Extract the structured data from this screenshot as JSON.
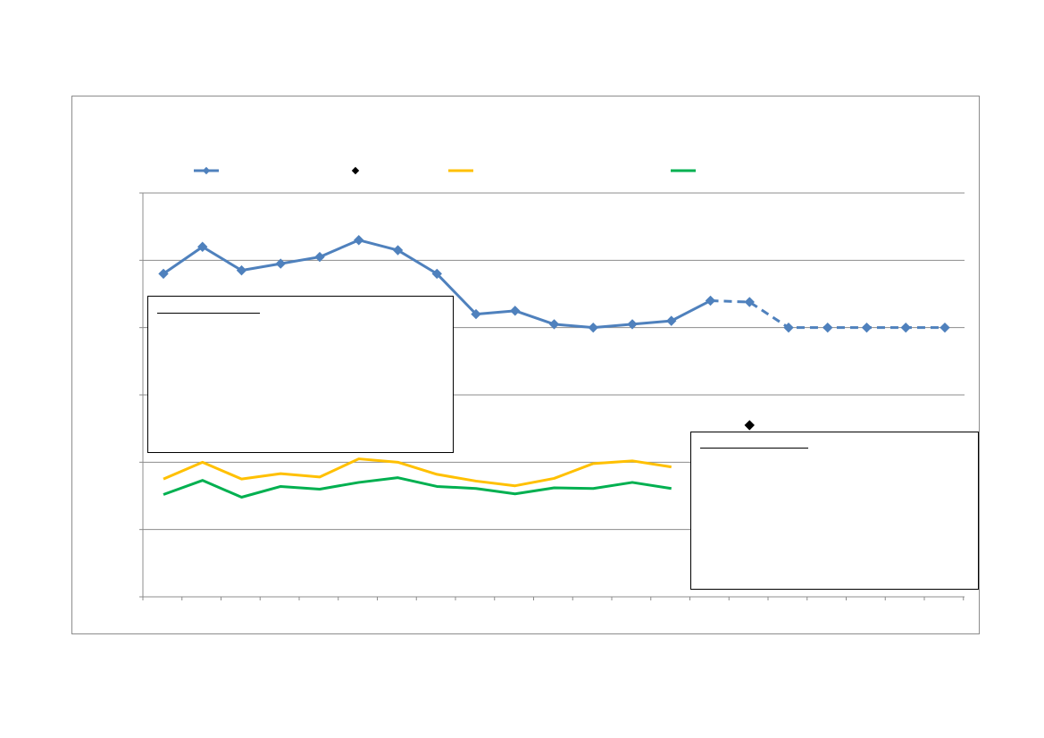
{
  "chart_data": {
    "type": "line",
    "title": "",
    "xlabel": "",
    "ylabel": "",
    "ylim": [
      0,
      6
    ],
    "grid": true,
    "legend_position": "top",
    "n_points": 21,
    "series": [
      {
        "color": "#4f81bd",
        "marker": "diamond",
        "values": [
          4.8,
          5.2,
          4.85,
          4.95,
          5.05,
          5.3,
          5.15,
          4.8,
          4.2,
          4.25,
          4.05,
          4.0,
          4.05,
          4.1,
          4.4,
          4.38,
          4.0,
          4.0,
          4.0,
          4.0,
          4.0
        ],
        "projection_start_index": 14
      },
      {
        "color": "#000000",
        "marker": "diamond",
        "values": [
          null,
          null,
          null,
          null,
          null,
          null,
          null,
          null,
          null,
          null,
          null,
          null,
          null,
          null,
          null,
          2.55,
          null,
          null,
          null,
          null,
          null
        ]
      },
      {
        "color": "#ffc000",
        "values": [
          1.75,
          2.0,
          1.75,
          1.83,
          1.78,
          2.05,
          2.0,
          1.82,
          1.72,
          1.65,
          1.76,
          1.98,
          2.02,
          1.93
        ]
      },
      {
        "color": "#00b050",
        "values": [
          1.52,
          1.73,
          1.48,
          1.64,
          1.6,
          1.7,
          1.77,
          1.64,
          1.61,
          1.53,
          1.62,
          1.61,
          1.7,
          1.61
        ]
      }
    ]
  }
}
